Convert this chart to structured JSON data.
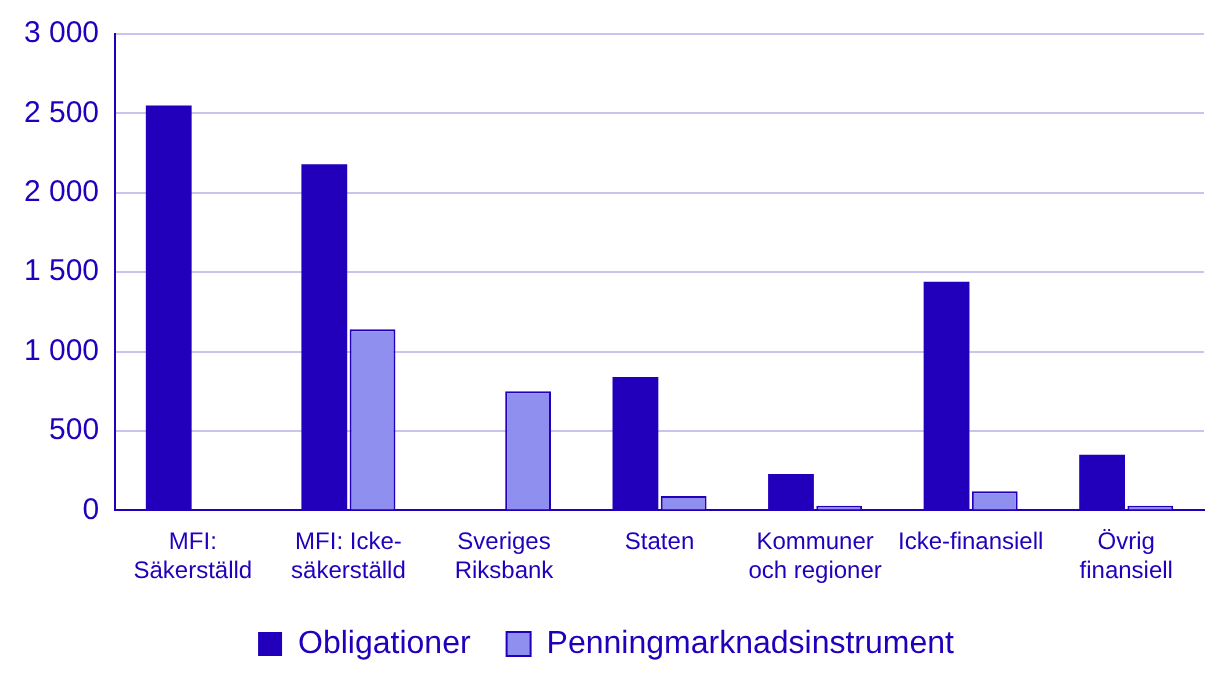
{
  "chart_data": {
    "type": "bar",
    "categories": [
      "MFI:\nSäkerställd",
      "MFI: Icke-\nsäkerställd",
      "Sveriges\nRiksbank",
      "Staten",
      "Kommuner\noch regioner",
      "Icke-finansiell",
      "Övrig\nfinansiell"
    ],
    "series": [
      {
        "name": "Obligationer",
        "color": "#2200bb",
        "values": [
          2550,
          2180,
          null,
          840,
          230,
          1440,
          350
        ]
      },
      {
        "name": "Penningmarknadsinstrument",
        "color": "#8f8ff0",
        "values": [
          null,
          1140,
          750,
          90,
          30,
          120,
          30
        ]
      }
    ],
    "ylim": [
      0,
      3000
    ],
    "yticks": [
      0,
      500,
      {
        "value": 1000,
        "label": "1 000"
      },
      {
        "value": 1500,
        "label": "1 500"
      },
      {
        "value": 2000,
        "label": "2 000"
      },
      {
        "value": 2500,
        "label": "2 500"
      },
      {
        "value": 3000,
        "label": "3 000"
      }
    ],
    "grid": "y",
    "legend": "bottom"
  }
}
